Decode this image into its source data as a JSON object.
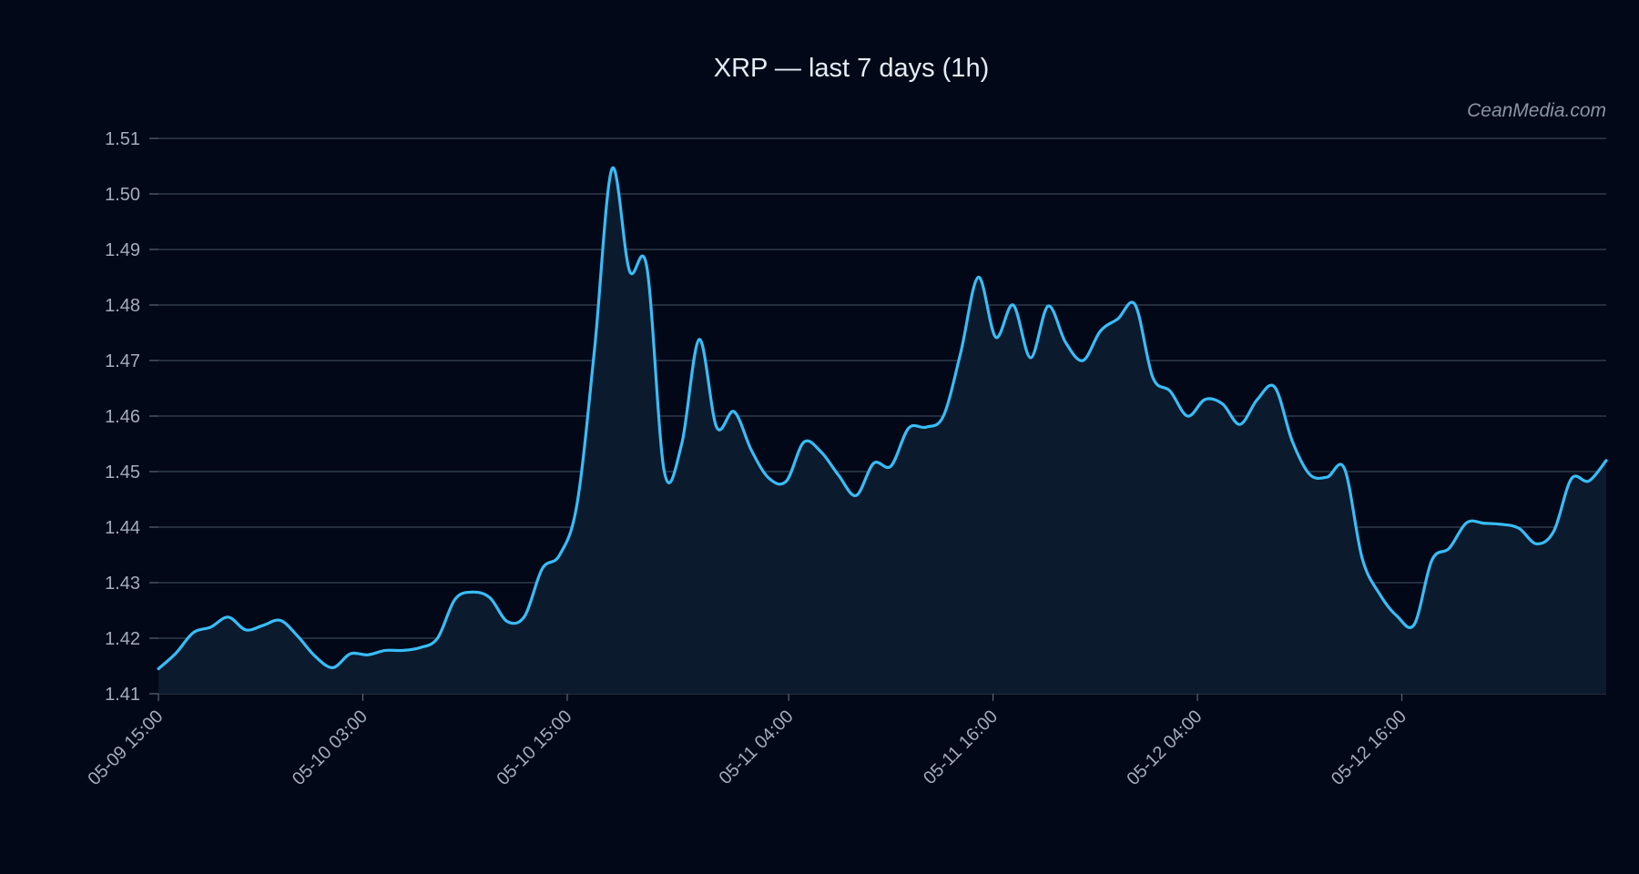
{
  "watermark": "CeanMedia.com",
  "colors": {
    "background": "#020817",
    "line": "#38bdf8",
    "area": "#0c1a2d",
    "grid": "#3a4455",
    "text": "#a3adbd"
  },
  "chart_data": {
    "type": "area",
    "title": "XRP — last 7 days (1h)",
    "xlabel": "",
    "ylabel": "",
    "x_start": "05-09 15:00",
    "x_interval": "1h",
    "x_range": [
      "05-09 15:00",
      "05-13 04:00"
    ],
    "ylim": [
      1.41,
      1.51
    ],
    "y_ticks": [
      "1.51",
      "1.50",
      "1.49",
      "1.48",
      "1.47",
      "1.46",
      "1.45",
      "1.44",
      "1.43",
      "1.42",
      "1.41"
    ],
    "x_ticks": [
      {
        "x": "05-09 15:00",
        "label": "05-09 15:00"
      },
      {
        "x": "05-10 03:00",
        "label": "05-10 03:00"
      },
      {
        "x": "05-10 15:00",
        "label": "05-10 15:00"
      },
      {
        "x": "05-11 04:00",
        "label": "05-11 04:00"
      },
      {
        "x": "05-11 16:00",
        "label": "05-11 16:00"
      },
      {
        "x": "05-12 04:00",
        "label": "05-12 04:00"
      },
      {
        "x": "05-12 16:00",
        "label": "05-12 16:00"
      }
    ],
    "grid": true,
    "legend": "none",
    "series": [
      {
        "values": [
          1.4145,
          1.4173,
          1.421,
          1.422,
          1.4238,
          1.4215,
          1.4223,
          1.4232,
          1.4203,
          1.4167,
          1.4147,
          1.4172,
          1.417,
          1.4178,
          1.4178,
          1.4183,
          1.42,
          1.427,
          1.4283,
          1.4273,
          1.423,
          1.424,
          1.4325,
          1.435,
          1.4442,
          1.472,
          1.5045,
          1.4862,
          1.4868,
          1.45,
          1.455,
          1.4738,
          1.458,
          1.4608,
          1.4538,
          1.4488,
          1.4483,
          1.4553,
          1.4535,
          1.4493,
          1.4457,
          1.4515,
          1.451,
          1.4578,
          1.458,
          1.46,
          1.4715,
          1.485,
          1.4742,
          1.48,
          1.4705,
          1.4798,
          1.4733,
          1.47,
          1.4753,
          1.4775,
          1.48,
          1.467,
          1.4645,
          1.46,
          1.463,
          1.4622,
          1.4585,
          1.463,
          1.4652,
          1.4555,
          1.4495,
          1.449,
          1.4505,
          1.4345,
          1.428,
          1.424,
          1.4225,
          1.434,
          1.4362,
          1.4408,
          1.4407,
          1.4405,
          1.4398,
          1.437,
          1.4393,
          1.4487,
          1.4483,
          1.452
        ]
      }
    ]
  }
}
